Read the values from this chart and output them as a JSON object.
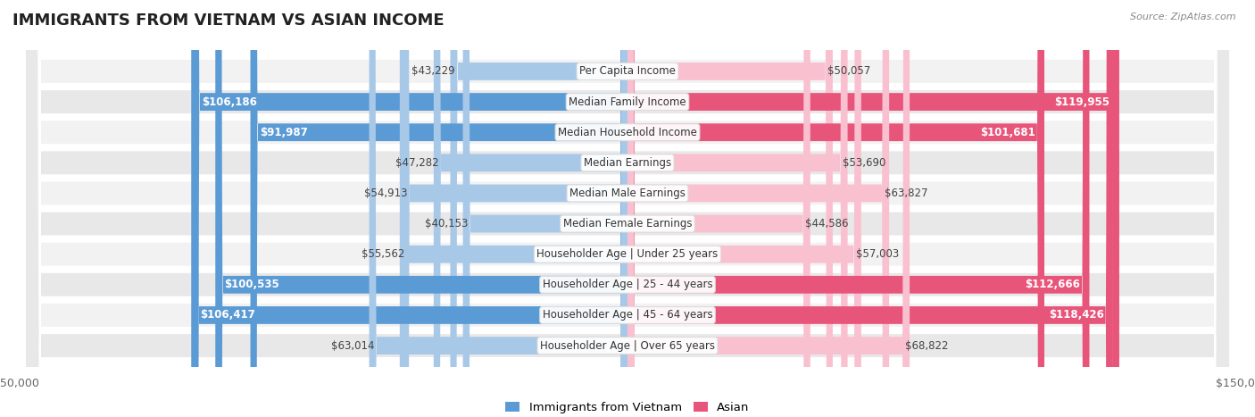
{
  "title": "IMMIGRANTS FROM VIETNAM VS ASIAN INCOME",
  "source": "Source: ZipAtlas.com",
  "categories": [
    "Per Capita Income",
    "Median Family Income",
    "Median Household Income",
    "Median Earnings",
    "Median Male Earnings",
    "Median Female Earnings",
    "Householder Age | Under 25 years",
    "Householder Age | 25 - 44 years",
    "Householder Age | 45 - 64 years",
    "Householder Age | Over 65 years"
  ],
  "vietnam_values": [
    43229,
    106186,
    91987,
    47282,
    54913,
    40153,
    55562,
    100535,
    106417,
    63014
  ],
  "asian_values": [
    50057,
    119955,
    101681,
    53690,
    63827,
    44586,
    57003,
    112666,
    118426,
    68822
  ],
  "vietnam_labels": [
    "$43,229",
    "$106,186",
    "$91,987",
    "$47,282",
    "$54,913",
    "$40,153",
    "$55,562",
    "$100,535",
    "$106,417",
    "$63,014"
  ],
  "asian_labels": [
    "$50,057",
    "$119,955",
    "$101,681",
    "$53,690",
    "$63,827",
    "$44,586",
    "$57,003",
    "$112,666",
    "$118,426",
    "$68,822"
  ],
  "max_value": 150000,
  "vietnam_color_light": "#a8c8e8",
  "vietnam_color_dark": "#5b9bd5",
  "asian_color_light": "#f9c0d0",
  "asian_color_dark": "#e8557a",
  "bar_height": 0.58,
  "row_bg_color_even": "#f2f2f2",
  "row_bg_color_odd": "#e8e8e8",
  "label_inside_threshold": 70000,
  "title_fontsize": 13,
  "label_fontsize": 8.5,
  "tick_fontsize": 9,
  "cat_fontsize": 8.5,
  "legend_vietnam": "Immigrants from Vietnam",
  "legend_asian": "Asian"
}
